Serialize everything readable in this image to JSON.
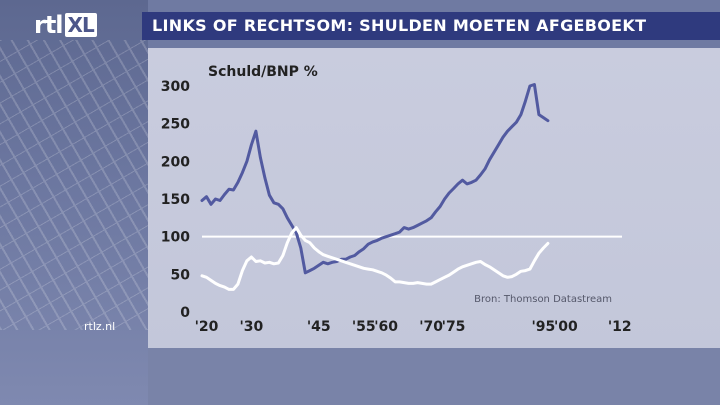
{
  "logo": {
    "text": "rtl",
    "badge": "XL"
  },
  "header": {
    "title": "LINKS OF RECHTSOM: SHULDEN MOETEN AFGEBOEKT"
  },
  "footer": {
    "site": "rtlz.nl"
  },
  "colors": {
    "title_bar": "#2f3a7e",
    "series_debt": "#525aa0",
    "series_white": "#ffffff",
    "reference_line": "#ffffff"
  },
  "chart_data": {
    "type": "line",
    "ylabel": "Schuld/BNP %",
    "ylim": [
      0,
      300
    ],
    "yticks": [
      0,
      50,
      100,
      150,
      200,
      250,
      300
    ],
    "xlim": [
      1919,
      2012.5
    ],
    "xticks": [
      {
        "value": 1920,
        "label": "'20"
      },
      {
        "value": 1930,
        "label": "'30"
      },
      {
        "value": 1945,
        "label": "'45"
      },
      {
        "value": 1955,
        "label": "'55"
      },
      {
        "value": 1960,
        "label": "'60"
      },
      {
        "value": 1970,
        "label": "'70"
      },
      {
        "value": 1975,
        "label": "'75"
      },
      {
        "value": 1995,
        "label": "'95"
      },
      {
        "value": 2000,
        "label": "'00"
      },
      {
        "value": 2012,
        "label": "'12"
      }
    ],
    "reference_line": 100,
    "source": "Bron: Thomson Datastream",
    "grid": false,
    "series": [
      {
        "color": "#525aa0",
        "points": [
          [
            1919,
            148
          ],
          [
            1920,
            153
          ],
          [
            1921,
            143
          ],
          [
            1922,
            150
          ],
          [
            1923,
            148
          ],
          [
            1924,
            156
          ],
          [
            1925,
            163
          ],
          [
            1926,
            162
          ],
          [
            1927,
            172
          ],
          [
            1928,
            185
          ],
          [
            1929,
            200
          ],
          [
            1930,
            222
          ],
          [
            1931,
            240
          ],
          [
            1932,
            205
          ],
          [
            1933,
            178
          ],
          [
            1934,
            155
          ],
          [
            1935,
            145
          ],
          [
            1936,
            143
          ],
          [
            1937,
            137
          ],
          [
            1938,
            125
          ],
          [
            1939,
            115
          ],
          [
            1940,
            105
          ],
          [
            1941,
            85
          ],
          [
            1942,
            52
          ],
          [
            1943,
            55
          ],
          [
            1944,
            58
          ],
          [
            1945,
            62
          ],
          [
            1946,
            66
          ],
          [
            1947,
            64
          ],
          [
            1948,
            66
          ],
          [
            1949,
            67
          ],
          [
            1950,
            70
          ],
          [
            1951,
            70
          ],
          [
            1952,
            73
          ],
          [
            1953,
            75
          ],
          [
            1954,
            80
          ],
          [
            1955,
            84
          ],
          [
            1956,
            90
          ],
          [
            1957,
            93
          ],
          [
            1958,
            95
          ],
          [
            1959,
            98
          ],
          [
            1960,
            100
          ],
          [
            1961,
            102
          ],
          [
            1962,
            104
          ],
          [
            1963,
            106
          ],
          [
            1964,
            112
          ],
          [
            1965,
            110
          ],
          [
            1966,
            112
          ],
          [
            1967,
            115
          ],
          [
            1968,
            118
          ],
          [
            1969,
            121
          ],
          [
            1970,
            125
          ],
          [
            1971,
            133
          ],
          [
            1972,
            140
          ],
          [
            1973,
            150
          ],
          [
            1974,
            158
          ],
          [
            1975,
            164
          ],
          [
            1976,
            170
          ],
          [
            1977,
            175
          ],
          [
            1978,
            170
          ],
          [
            1979,
            172
          ],
          [
            1980,
            175
          ],
          [
            1981,
            182
          ],
          [
            1982,
            190
          ],
          [
            1983,
            202
          ],
          [
            1984,
            212
          ],
          [
            1985,
            222
          ],
          [
            1986,
            232
          ],
          [
            1987,
            240
          ],
          [
            1988,
            246
          ],
          [
            1989,
            252
          ],
          [
            1990,
            262
          ],
          [
            1991,
            280
          ],
          [
            1992,
            300
          ],
          [
            1993,
            302
          ],
          [
            1994,
            262
          ],
          [
            1995,
            258
          ],
          [
            1996,
            254
          ]
        ]
      },
      {
        "color": "#ffffff",
        "points": [
          [
            1919,
            48
          ],
          [
            1920,
            46
          ],
          [
            1921,
            42
          ],
          [
            1922,
            38
          ],
          [
            1923,
            35
          ],
          [
            1924,
            33
          ],
          [
            1925,
            30
          ],
          [
            1926,
            30
          ],
          [
            1927,
            37
          ],
          [
            1928,
            55
          ],
          [
            1929,
            68
          ],
          [
            1930,
            73
          ],
          [
            1931,
            67
          ],
          [
            1932,
            68
          ],
          [
            1933,
            65
          ],
          [
            1934,
            66
          ],
          [
            1935,
            64
          ],
          [
            1936,
            65
          ],
          [
            1937,
            75
          ],
          [
            1938,
            92
          ],
          [
            1939,
            105
          ],
          [
            1940,
            112
          ],
          [
            1941,
            102
          ],
          [
            1942,
            95
          ],
          [
            1943,
            92
          ],
          [
            1944,
            85
          ],
          [
            1945,
            80
          ],
          [
            1946,
            76
          ],
          [
            1947,
            74
          ],
          [
            1948,
            72
          ],
          [
            1949,
            70
          ],
          [
            1950,
            68
          ],
          [
            1951,
            66
          ],
          [
            1952,
            64
          ],
          [
            1953,
            62
          ],
          [
            1954,
            60
          ],
          [
            1955,
            58
          ],
          [
            1956,
            57
          ],
          [
            1957,
            56
          ],
          [
            1958,
            54
          ],
          [
            1959,
            52
          ],
          [
            1960,
            49
          ],
          [
            1961,
            45
          ],
          [
            1962,
            40
          ],
          [
            1963,
            40
          ],
          [
            1964,
            39
          ],
          [
            1965,
            38
          ],
          [
            1966,
            38
          ],
          [
            1967,
            39
          ],
          [
            1968,
            38
          ],
          [
            1969,
            37
          ],
          [
            1970,
            37
          ],
          [
            1971,
            40
          ],
          [
            1972,
            43
          ],
          [
            1973,
            46
          ],
          [
            1974,
            49
          ],
          [
            1975,
            53
          ],
          [
            1976,
            57
          ],
          [
            1977,
            60
          ],
          [
            1978,
            62
          ],
          [
            1979,
            64
          ],
          [
            1980,
            66
          ],
          [
            1981,
            67
          ],
          [
            1982,
            63
          ],
          [
            1983,
            60
          ],
          [
            1984,
            56
          ],
          [
            1985,
            52
          ],
          [
            1986,
            48
          ],
          [
            1987,
            46
          ],
          [
            1988,
            47
          ],
          [
            1989,
            50
          ],
          [
            1990,
            54
          ],
          [
            1991,
            55
          ],
          [
            1992,
            57
          ],
          [
            1993,
            68
          ],
          [
            1994,
            78
          ],
          [
            1995,
            85
          ],
          [
            1996,
            91
          ]
        ]
      }
    ]
  }
}
